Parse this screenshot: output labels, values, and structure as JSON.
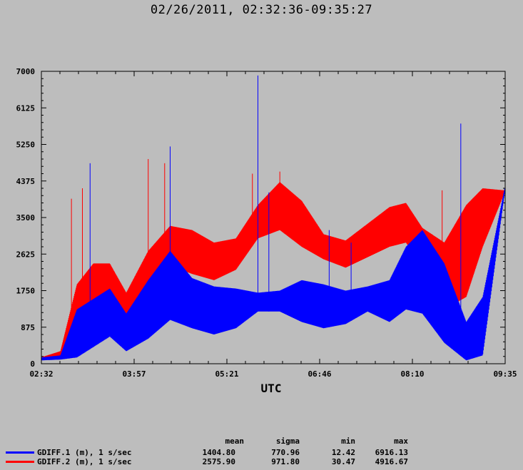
{
  "title": "02/26/2011, 02:32:36-09:35:27",
  "chart_data": {
    "type": "line",
    "title": "02/26/2011, 02:32:36-09:35:27",
    "xlabel": "UTC",
    "ylabel": "",
    "x_tick_labels": [
      "02:32",
      "03:57",
      "05:21",
      "06:46",
      "08:10",
      "09:35"
    ],
    "xlim": [
      "02:32:36",
      "09:35:27"
    ],
    "ylim": [
      0,
      7000
    ],
    "y_ticks": [
      0,
      875,
      1750,
      2625,
      3500,
      4375,
      5250,
      6125,
      7000
    ],
    "series": [
      {
        "name": "GDIFF.1 (m), 1 s/sec",
        "color": "#0000ff",
        "envelope_x": [
          "02:32",
          "02:50",
          "03:05",
          "03:20",
          "03:35",
          "03:50",
          "04:10",
          "04:30",
          "04:50",
          "05:10",
          "05:30",
          "05:50",
          "06:10",
          "06:30",
          "06:50",
          "07:10",
          "07:30",
          "07:50",
          "08:05",
          "08:20",
          "08:40",
          "09:00",
          "09:15",
          "09:35"
        ],
        "envelope_low": [
          80,
          100,
          150,
          400,
          650,
          300,
          600,
          1050,
          850,
          700,
          850,
          1250,
          1250,
          1000,
          850,
          950,
          1250,
          1000,
          1300,
          1200,
          500,
          80,
          200,
          4100
        ],
        "envelope_high": [
          150,
          200,
          1300,
          1550,
          1800,
          1200,
          2000,
          2700,
          2050,
          1850,
          1800,
          1700,
          1750,
          2000,
          1900,
          1750,
          1850,
          2000,
          2800,
          3200,
          2400,
          1000,
          1600,
          4200
        ],
        "spikes": [
          {
            "x": "03:17",
            "y": 4800
          },
          {
            "x": "04:30",
            "y": 5200
          },
          {
            "x": "05:50",
            "y": 6900
          },
          {
            "x": "06:00",
            "y": 4100
          },
          {
            "x": "06:55",
            "y": 3200
          },
          {
            "x": "07:15",
            "y": 2900
          },
          {
            "x": "08:55",
            "y": 5750
          }
        ]
      },
      {
        "name": "GDIFF.2 (m), 1 s/sec",
        "color": "#ff0000",
        "envelope_x": [
          "02:32",
          "02:50",
          "03:05",
          "03:20",
          "03:35",
          "03:50",
          "04:10",
          "04:30",
          "04:50",
          "05:10",
          "05:30",
          "05:50",
          "06:10",
          "06:30",
          "06:50",
          "07:10",
          "07:30",
          "07:50",
          "08:05",
          "08:20",
          "08:40",
          "09:00",
          "09:15",
          "09:35"
        ],
        "envelope_low": [
          80,
          150,
          600,
          1350,
          1650,
          1150,
          1800,
          2350,
          2150,
          2000,
          2250,
          3000,
          3200,
          2800,
          2500,
          2300,
          2550,
          2800,
          2900,
          2350,
          1300,
          1600,
          2800,
          4100
        ],
        "envelope_high": [
          150,
          300,
          1900,
          2400,
          2400,
          1700,
          2700,
          3300,
          3200,
          2900,
          3000,
          3800,
          4350,
          3900,
          3100,
          2950,
          3350,
          3750,
          3850,
          3250,
          2900,
          3800,
          4200,
          4150
        ],
        "spikes": [
          {
            "x": "03:00",
            "y": 3950
          },
          {
            "x": "03:10",
            "y": 4200
          },
          {
            "x": "04:10",
            "y": 4900
          },
          {
            "x": "04:25",
            "y": 4800
          },
          {
            "x": "05:45",
            "y": 4550
          },
          {
            "x": "06:10",
            "y": 4600
          },
          {
            "x": "06:30",
            "y": 3700
          },
          {
            "x": "08:38",
            "y": 4150
          }
        ]
      }
    ],
    "legend_position": "bottom-left",
    "grid": false
  },
  "stats": {
    "headers": [
      "mean",
      "sigma",
      "min",
      "max"
    ],
    "rows": [
      {
        "name": "GDIFF.1 (m), 1 s/sec",
        "values": [
          "1404.80",
          "770.96",
          "12.42",
          "6916.13"
        ]
      },
      {
        "name": "GDIFF.2 (m), 1 s/sec",
        "values": [
          "2575.90",
          "971.80",
          "30.47",
          "4916.67"
        ]
      }
    ]
  }
}
